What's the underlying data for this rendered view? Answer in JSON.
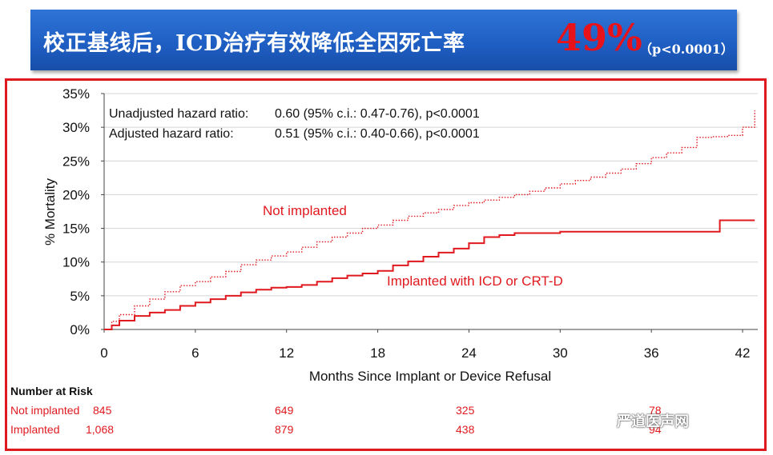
{
  "banner": {
    "title": "校正基线后，ICD治疗有效降低全因死亡率",
    "highlight": "49%",
    "pvalue": "（p<0.0001）"
  },
  "annotations": {
    "line1_label": "Unadjusted hazard ratio:",
    "line1_value": "0.60 (95% c.i.: 0.47-0.76), p<0.0001",
    "line2_label": "Adjusted hazard ratio:",
    "line2_value": "0.51 (95% c.i.: 0.40-0.66), p<0.0001",
    "not_implanted_label": "Not implanted",
    "implanted_label": "Implanted with ICD or CRT-D"
  },
  "risk_table": {
    "heading": "Number at Risk",
    "rows": [
      {
        "label": "Not implanted",
        "values": [
          "845",
          "649",
          "325",
          "78"
        ]
      },
      {
        "label": "Implanted",
        "values": [
          "1,068",
          "879",
          "438",
          "94"
        ]
      }
    ]
  },
  "watermark": "严道医声网",
  "colors": {
    "accent": "#e0191f",
    "banner": "#1f5fc4",
    "highlight": "#e8121a"
  },
  "chart_data": {
    "type": "line",
    "title": "",
    "xlabel": "Months Since Implant or Device Refusal",
    "ylabel": "% Mortality",
    "xlim": [
      0,
      43
    ],
    "ylim": [
      0,
      35
    ],
    "xticks": [
      0,
      6,
      12,
      18,
      24,
      30,
      36,
      42
    ],
    "yticks": [
      0,
      5,
      10,
      15,
      20,
      25,
      30,
      35
    ],
    "ytick_labels": [
      "0%",
      "5%",
      "10%",
      "15%",
      "20%",
      "25%",
      "30%",
      "35%"
    ],
    "grid": "horizontal",
    "series": [
      {
        "name": "Not implanted",
        "style": "dotted",
        "color": "#e0191f",
        "x": [
          0,
          0.5,
          1,
          2,
          3,
          4,
          5,
          6,
          7,
          8,
          9,
          10,
          11,
          12,
          13,
          14,
          15,
          16,
          17,
          18,
          19,
          20,
          21,
          22,
          23,
          24,
          25,
          26,
          27,
          28,
          29,
          30,
          31,
          32,
          33,
          34,
          35,
          36,
          37,
          38,
          39,
          40,
          41,
          42,
          42.8
        ],
        "y": [
          0,
          1.2,
          2.2,
          3.5,
          4.5,
          5.6,
          6.5,
          7.1,
          7.8,
          8.6,
          9.6,
          10.3,
          10.9,
          11.5,
          12.2,
          13.0,
          13.7,
          14.3,
          15.0,
          15.5,
          16.2,
          16.8,
          17.3,
          17.8,
          18.4,
          18.8,
          19.2,
          19.6,
          20.0,
          20.5,
          21.0,
          21.6,
          22.1,
          22.6,
          23.2,
          23.8,
          24.6,
          25.5,
          26.2,
          27.0,
          28.5,
          28.6,
          28.8,
          30.0,
          32.5
        ]
      },
      {
        "name": "Implanted with ICD or CRT-D",
        "style": "solid",
        "color": "#e0191f",
        "x": [
          0,
          0.5,
          1,
          2,
          3,
          4,
          5,
          6,
          7,
          8,
          9,
          10,
          11,
          12,
          13,
          14,
          15,
          16,
          17,
          18,
          19,
          20,
          21,
          22,
          23,
          24,
          25,
          26,
          27,
          28,
          29,
          30,
          32,
          34,
          36,
          38,
          40,
          40.5,
          42.8
        ],
        "y": [
          0,
          0.6,
          1.3,
          2.0,
          2.5,
          2.9,
          3.5,
          4.0,
          4.5,
          5.0,
          5.5,
          5.9,
          6.2,
          6.3,
          6.6,
          7.1,
          7.6,
          8.0,
          8.3,
          8.7,
          9.5,
          10.1,
          10.8,
          11.4,
          12.0,
          12.8,
          13.7,
          14.0,
          14.3,
          14.3,
          14.3,
          14.5,
          14.5,
          14.5,
          14.5,
          14.5,
          14.5,
          16.2,
          16.2
        ]
      }
    ]
  }
}
